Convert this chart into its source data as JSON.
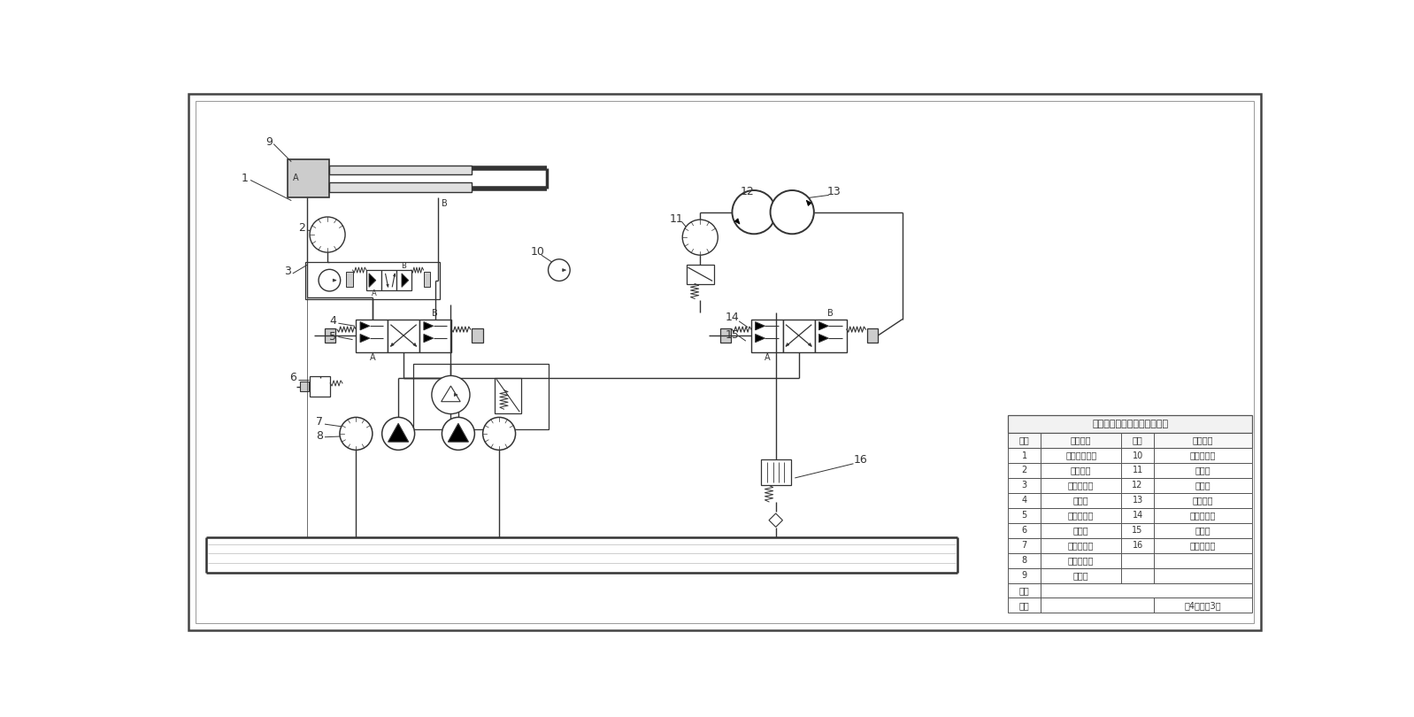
{
  "title": "板框式压滤机液压系统原理图",
  "bg_color": "white",
  "line_color": "#333333",
  "table_items": [
    {
      "num": "1",
      "name": "先控点压力表",
      "num2": "10",
      "name2": "液控单向阀"
    },
    {
      "num": "2",
      "name": "电磁球阀",
      "num2": "11",
      "name2": "压力表"
    },
    {
      "num": "3",
      "name": "电磁换向阀",
      "num2": "12",
      "name2": "滤滚阀"
    },
    {
      "num": "4",
      "name": "顺序阀",
      "num2": "13",
      "name2": "齿轮马达"
    },
    {
      "num": "5",
      "name": "安全溢流阀",
      "num2": "14",
      "name2": "电磁换向阀"
    },
    {
      "num": "6",
      "name": "单向阀",
      "num2": "15",
      "name2": "滤滚阀"
    },
    {
      "num": "7",
      "name": "齿轮泵电机",
      "num2": "16",
      "name2": "回油滤清器"
    },
    {
      "num": "8",
      "name": "柱塞泵电机",
      "num2": "",
      "name2": ""
    },
    {
      "num": "9",
      "name": "液压缸",
      "num2": "",
      "name2": ""
    }
  ],
  "footer_label1": "姓名",
  "footer_label2": "学号",
  "footer_page": "共4页，共3页"
}
